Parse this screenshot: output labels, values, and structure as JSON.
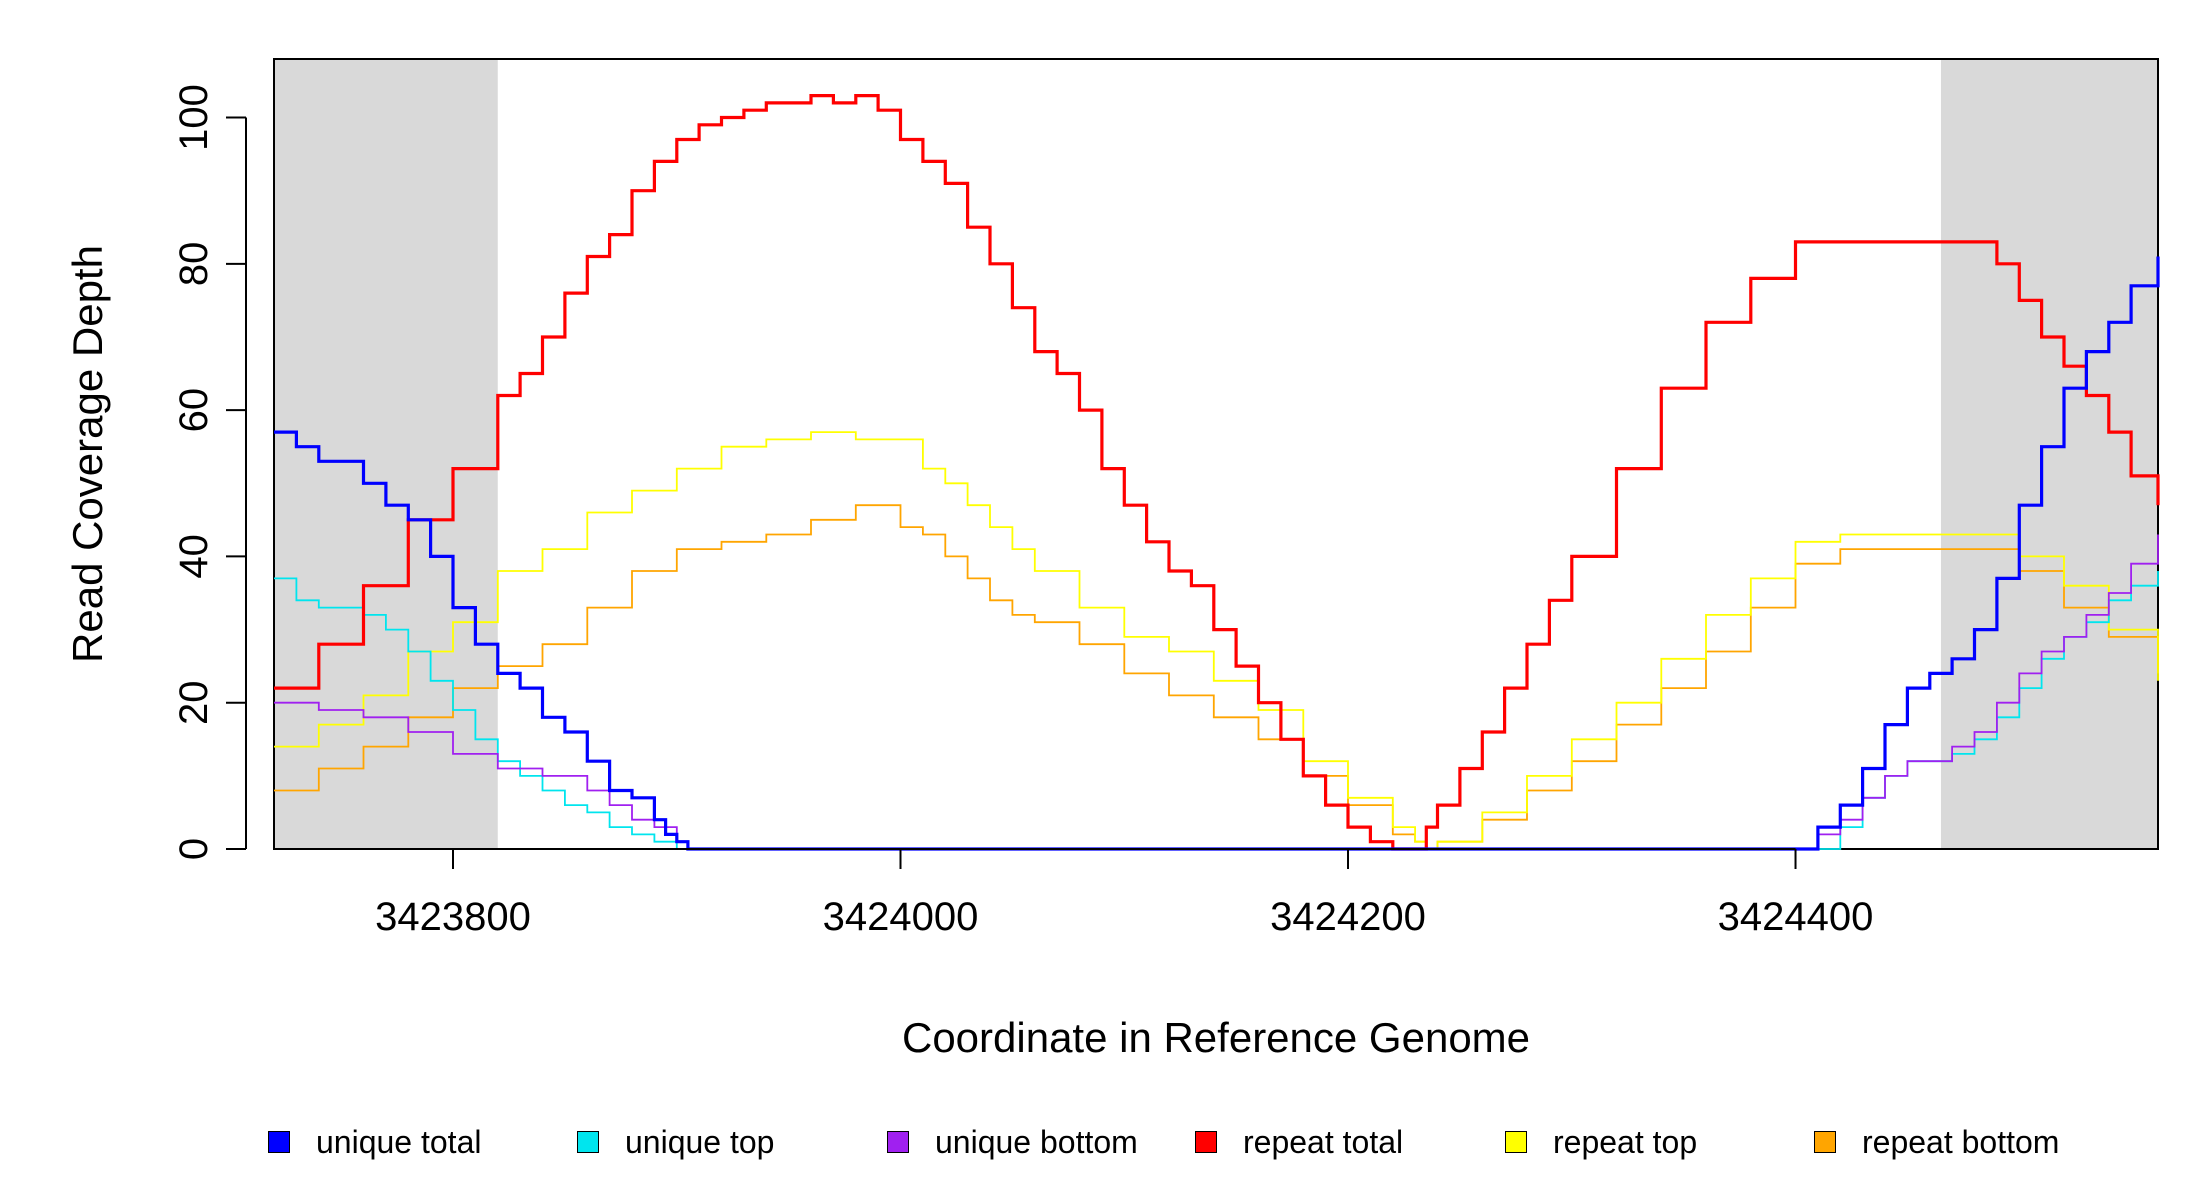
{
  "chart_data": {
    "type": "line",
    "title": "",
    "xlabel": "Coordinate in Reference Genome",
    "ylabel": "Read Coverage Depth",
    "xlim": [
      3423720,
      3424562
    ],
    "ylim": [
      0,
      108
    ],
    "x_ticks": [
      3423800,
      3424000,
      3424200,
      3424400
    ],
    "x_tick_labels": [
      "3423800",
      "3424000",
      "3424200",
      "3424400"
    ],
    "y_ticks": [
      0,
      20,
      40,
      60,
      80,
      100
    ],
    "y_tick_labels": [
      "0",
      "20",
      "40",
      "60",
      "80",
      "100"
    ],
    "shaded_regions": [
      [
        3423720,
        3423820
      ],
      [
        3424465,
        3424562
      ]
    ],
    "shade_color": "#d9d9d9",
    "legend_position": "bottom",
    "series": [
      {
        "name": "unique total",
        "color": "#0000ff",
        "x": [
          3423720,
          3423730,
          3423740,
          3423760,
          3423770,
          3423780,
          3423790,
          3423800,
          3423810,
          3423820,
          3423830,
          3423840,
          3423850,
          3423860,
          3423870,
          3423880,
          3423890,
          3423895,
          3423900,
          3423905,
          3423910,
          3424405,
          3424410,
          3424420,
          3424430,
          3424440,
          3424450,
          3424460,
          3424470,
          3424480,
          3424490,
          3424500,
          3424510,
          3424520,
          3424530,
          3424540,
          3424550,
          3424562
        ],
        "y": [
          57,
          55,
          53,
          50,
          47,
          45,
          40,
          33,
          28,
          24,
          22,
          18,
          16,
          12,
          8,
          7,
          4,
          2,
          1,
          0,
          0,
          0,
          3,
          6,
          11,
          17,
          22,
          24,
          26,
          30,
          37,
          47,
          55,
          63,
          68,
          72,
          77,
          81
        ]
      },
      {
        "name": "unique top",
        "color": "#00e5ee",
        "x": [
          3423720,
          3423730,
          3423740,
          3423760,
          3423770,
          3423780,
          3423790,
          3423800,
          3423810,
          3423820,
          3423830,
          3423840,
          3423850,
          3423860,
          3423870,
          3423880,
          3423890,
          3423900,
          3423905,
          3423910,
          3424410,
          3424420,
          3424430,
          3424440,
          3424450,
          3424460,
          3424470,
          3424480,
          3424490,
          3424500,
          3424510,
          3424520,
          3424530,
          3424540,
          3424550,
          3424562
        ],
        "y": [
          37,
          34,
          33,
          32,
          30,
          27,
          23,
          19,
          15,
          12,
          10,
          8,
          6,
          5,
          3,
          2,
          1,
          0,
          0,
          0,
          0,
          3,
          7,
          10,
          12,
          12,
          13,
          15,
          18,
          22,
          26,
          29,
          31,
          34,
          36,
          38
        ]
      },
      {
        "name": "unique bottom",
        "color": "#a020f0",
        "x": [
          3423720,
          3423740,
          3423760,
          3423780,
          3423800,
          3423820,
          3423840,
          3423860,
          3423870,
          3423880,
          3423890,
          3423900,
          3423905,
          3423910,
          3424405,
          3424410,
          3424420,
          3424430,
          3424440,
          3424450,
          3424460,
          3424470,
          3424480,
          3424490,
          3424500,
          3424510,
          3424520,
          3424530,
          3424540,
          3424550,
          3424562
        ],
        "y": [
          20,
          19,
          18,
          16,
          13,
          11,
          10,
          8,
          6,
          4,
          3,
          1,
          0,
          0,
          0,
          2,
          4,
          7,
          10,
          12,
          12,
          14,
          16,
          20,
          24,
          27,
          29,
          32,
          35,
          39,
          43
        ]
      },
      {
        "name": "repeat total",
        "color": "#ff0000",
        "x": [
          3423720,
          3423740,
          3423760,
          3423780,
          3423800,
          3423820,
          3423830,
          3423840,
          3423850,
          3423860,
          3423870,
          3423880,
          3423890,
          3423900,
          3423910,
          3423920,
          3423930,
          3423940,
          3423950,
          3423960,
          3423965,
          3423970,
          3423980,
          3423990,
          3424000,
          3424010,
          3424020,
          3424030,
          3424040,
          3424050,
          3424060,
          3424070,
          3424080,
          3424090,
          3424100,
          3424110,
          3424120,
          3424130,
          3424140,
          3424150,
          3424160,
          3424170,
          3424180,
          3424190,
          3424200,
          3424210,
          3424220,
          3424225,
          3424230,
          3424235,
          3424240,
          3424250,
          3424260,
          3424270,
          3424280,
          3424290,
          3424300,
          3424320,
          3424340,
          3424360,
          3424380,
          3424400,
          3424410,
          3424420,
          3424440,
          3424460,
          3424470,
          3424480,
          3424490,
          3424500,
          3424510,
          3424520,
          3424530,
          3424540,
          3424550,
          3424562
        ],
        "y": [
          22,
          28,
          36,
          45,
          52,
          62,
          65,
          70,
          76,
          81,
          84,
          90,
          94,
          97,
          99,
          100,
          101,
          102,
          102,
          103,
          103,
          102,
          103,
          101,
          97,
          94,
          91,
          85,
          80,
          74,
          68,
          65,
          60,
          52,
          47,
          42,
          38,
          36,
          30,
          25,
          20,
          15,
          10,
          6,
          3,
          1,
          0,
          0,
          0,
          3,
          6,
          11,
          16,
          22,
          28,
          34,
          40,
          52,
          63,
          72,
          78,
          83,
          83,
          83,
          83,
          83,
          83,
          83,
          80,
          75,
          70,
          66,
          62,
          57,
          51,
          47
        ]
      },
      {
        "name": "repeat top",
        "color": "#ffff00",
        "x": [
          3423720,
          3423740,
          3423760,
          3423780,
          3423800,
          3423820,
          3423840,
          3423860,
          3423880,
          3423900,
          3423920,
          3423940,
          3423960,
          3423980,
          3424000,
          3424010,
          3424020,
          3424030,
          3424040,
          3424050,
          3424060,
          3424080,
          3424100,
          3424120,
          3424140,
          3424160,
          3424180,
          3424200,
          3424220,
          3424230,
          3424235,
          3424240,
          3424260,
          3424280,
          3424300,
          3424320,
          3424340,
          3424360,
          3424380,
          3424400,
          3424420,
          3424440,
          3424460,
          3424480,
          3424500,
          3424520,
          3424540,
          3424562
        ],
        "y": [
          14,
          17,
          21,
          27,
          31,
          38,
          41,
          46,
          49,
          52,
          55,
          56,
          57,
          56,
          56,
          52,
          50,
          47,
          44,
          41,
          38,
          33,
          29,
          27,
          23,
          19,
          12,
          7,
          3,
          1,
          0,
          1,
          5,
          10,
          15,
          20,
          26,
          32,
          37,
          42,
          43,
          43,
          43,
          43,
          40,
          36,
          30,
          23
        ]
      },
      {
        "name": "repeat bottom",
        "color": "#ffa500",
        "x": [
          3423720,
          3423740,
          3423760,
          3423780,
          3423800,
          3423820,
          3423840,
          3423860,
          3423880,
          3423900,
          3423920,
          3423940,
          3423960,
          3423980,
          3424000,
          3424010,
          3424020,
          3424030,
          3424040,
          3424050,
          3424060,
          3424080,
          3424100,
          3424120,
          3424140,
          3424160,
          3424180,
          3424200,
          3424220,
          3424230,
          3424235,
          3424240,
          3424260,
          3424280,
          3424300,
          3424320,
          3424340,
          3424360,
          3424380,
          3424400,
          3424420,
          3424440,
          3424460,
          3424480,
          3424500,
          3424520,
          3424540,
          3424562
        ],
        "y": [
          8,
          11,
          14,
          18,
          22,
          25,
          28,
          33,
          38,
          41,
          42,
          43,
          45,
          47,
          44,
          43,
          40,
          37,
          34,
          32,
          31,
          28,
          24,
          21,
          18,
          15,
          10,
          6,
          2,
          1,
          0,
          1,
          4,
          8,
          12,
          17,
          22,
          27,
          33,
          39,
          41,
          41,
          41,
          41,
          38,
          33,
          29,
          24
        ]
      }
    ]
  }
}
